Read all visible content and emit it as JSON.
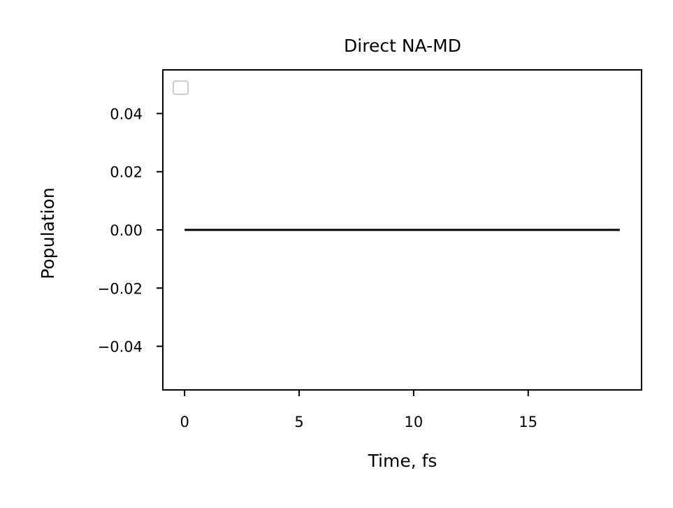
{
  "chart_data": {
    "type": "line",
    "title": "Direct NA-MD",
    "xlabel": "Time, fs",
    "ylabel": "Population",
    "xlim": [
      -0.95,
      19.95
    ],
    "ylim": [
      -0.055,
      0.055
    ],
    "xticks": [
      0,
      5,
      10,
      15
    ],
    "xtick_labels": [
      "0",
      "5",
      "10",
      "15"
    ],
    "yticks": [
      0.04,
      0.02,
      0.0,
      -0.02,
      -0.04
    ],
    "ytick_labels": [
      "0.04",
      "0.02",
      "0.00",
      "−0.02",
      "−0.04"
    ],
    "grid": false,
    "legend": {
      "placement": "upper-left",
      "entries": []
    },
    "series": [
      {
        "color": "#000000",
        "x": [
          0,
          1,
          2,
          3,
          4,
          5,
          6,
          7,
          8,
          9,
          10,
          11,
          12,
          13,
          14,
          15,
          16,
          17,
          18,
          19
        ],
        "y": [
          0,
          0,
          0,
          0,
          0,
          0,
          0,
          0,
          0,
          0,
          0,
          0,
          0,
          0,
          0,
          0,
          0,
          0,
          0,
          0
        ]
      }
    ]
  }
}
